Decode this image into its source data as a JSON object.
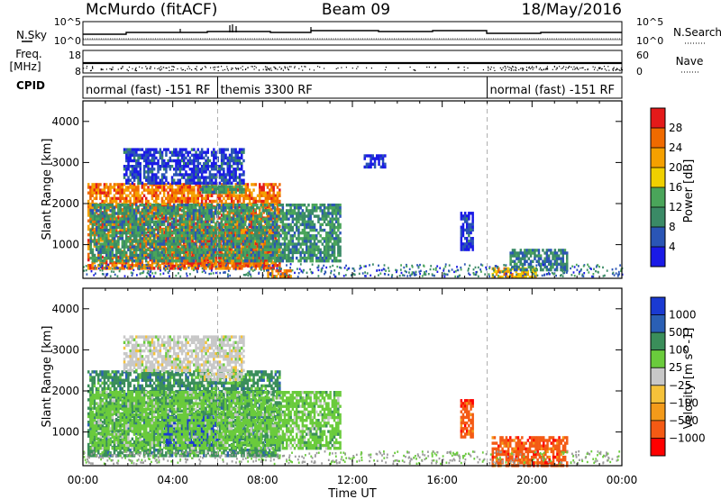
{
  "header": {
    "station": "McMurdo (fitACF)",
    "beam": "Beam 09",
    "date": "18/May/2016"
  },
  "strip_labels": {
    "nsky": "N.Sky",
    "nsky_hi": "10^5",
    "nsky_lo": "10^0",
    "freq_line1": "Freq.",
    "freq_line2": "[MHz]",
    "freq_hi": "18",
    "freq_lo": "8",
    "nsearch": "N.Search",
    "nsearch_hi": "10^5",
    "nsearch_lo": "10^0",
    "nave": "Nave",
    "nave_hi": "60",
    "nave_lo": "0",
    "cpid": "CPID"
  },
  "cpid_modes": [
    {
      "label": "normal (fast) -151 RF",
      "start": 0,
      "end": 6
    },
    {
      "label": "themis 3300 RF",
      "start": 6,
      "end": 18
    },
    {
      "label": "normal (fast) -151 RF",
      "start": 18,
      "end": 24
    }
  ],
  "colors": {
    "power_scale": [
      "#1a1ae6",
      "#2a55b5",
      "#3a8a66",
      "#4aa55a",
      "#f0d000",
      "#f5a000",
      "#f06a00",
      "#e41a1a"
    ],
    "velocity_scale": [
      "#ff0000",
      "#f45a14",
      "#f39a1a",
      "#f5c23a",
      "#c8c8c8",
      "#6acb3c",
      "#3a8e5a",
      "#2a5fb4",
      "#1a3ad2"
    ],
    "ground_scatter": "#9a9a9a"
  },
  "chart_data": [
    {
      "type": "heatmap",
      "name": "power",
      "xlabel": "Time UT",
      "ylabel": "Slant Range [km]",
      "colorbar_label": "Power [dB]",
      "xlim": [
        0,
        24
      ],
      "ylim": [
        180,
        4500
      ],
      "xticks": [
        "00:00",
        "04:00",
        "08:00",
        "12:00",
        "16:00",
        "20:00",
        "00:00"
      ],
      "yticks": [
        1000,
        2000,
        3000,
        4000
      ],
      "colorbar_ticks": [
        4,
        8,
        12,
        16,
        20,
        24,
        28
      ],
      "colorbar_range": [
        0,
        32
      ],
      "regions": [
        {
          "t0": 0.2,
          "t1": 8.8,
          "r0": 420,
          "r1": 2500,
          "peak": 30
        },
        {
          "t0": 3.5,
          "t1": 8.2,
          "r0": 500,
          "r1": 1400,
          "peak": 31
        },
        {
          "t0": 0.3,
          "t1": 11.5,
          "r0": 600,
          "r1": 2000,
          "peak": 16
        },
        {
          "t0": 1.8,
          "t1": 7.2,
          "r0": 2500,
          "r1": 3350,
          "peak": 9
        },
        {
          "t0": 5.2,
          "t1": 7.2,
          "r0": 2250,
          "r1": 2450,
          "peak": 16
        },
        {
          "t0": 8.2,
          "t1": 9.3,
          "r0": 200,
          "r1": 400,
          "peak": 30
        },
        {
          "t0": 18.2,
          "t1": 20.2,
          "r0": 200,
          "r1": 450,
          "peak": 26
        },
        {
          "t0": 19.0,
          "t1": 21.6,
          "r0": 420,
          "r1": 900,
          "peak": 14
        },
        {
          "t0": 12.5,
          "t1": 13.5,
          "r0": 2900,
          "r1": 3200,
          "peak": 8
        },
        {
          "t0": 16.8,
          "t1": 17.4,
          "r0": 900,
          "r1": 1800,
          "peak": 9
        }
      ]
    },
    {
      "type": "heatmap",
      "name": "velocity",
      "xlabel": "Time UT",
      "ylabel": "Slant Range [km]",
      "colorbar_label": "Velocity [m s^-1]",
      "xlim": [
        0,
        24
      ],
      "ylim": [
        180,
        4500
      ],
      "xticks": [
        "00:00",
        "04:00",
        "08:00",
        "12:00",
        "16:00",
        "20:00",
        "00:00"
      ],
      "yticks": [
        1000,
        2000,
        3000,
        4000
      ],
      "colorbar_ticks": [
        "1000",
        "500",
        "100",
        "25",
        "−25",
        "−100",
        "−500",
        "−1000"
      ],
      "regions": [
        {
          "t0": 0.2,
          "t1": 8.8,
          "r0": 420,
          "r1": 2500,
          "level": 6
        },
        {
          "t0": 3.6,
          "t1": 6.0,
          "r0": 700,
          "r1": 1400,
          "level": 8
        },
        {
          "t0": 0.3,
          "t1": 11.5,
          "r0": 600,
          "r1": 2000,
          "level": 5
        },
        {
          "t0": 1.8,
          "t1": 7.2,
          "r0": 2500,
          "r1": 3350,
          "level": 4
        },
        {
          "t0": 5.2,
          "t1": 7.2,
          "r0": 2250,
          "r1": 2450,
          "level": 4
        },
        {
          "t0": 18.2,
          "t1": 21.6,
          "r0": 200,
          "r1": 900,
          "level": 1
        },
        {
          "t0": 16.8,
          "t1": 17.4,
          "r0": 900,
          "r1": 1800,
          "level": 1
        }
      ]
    }
  ]
}
